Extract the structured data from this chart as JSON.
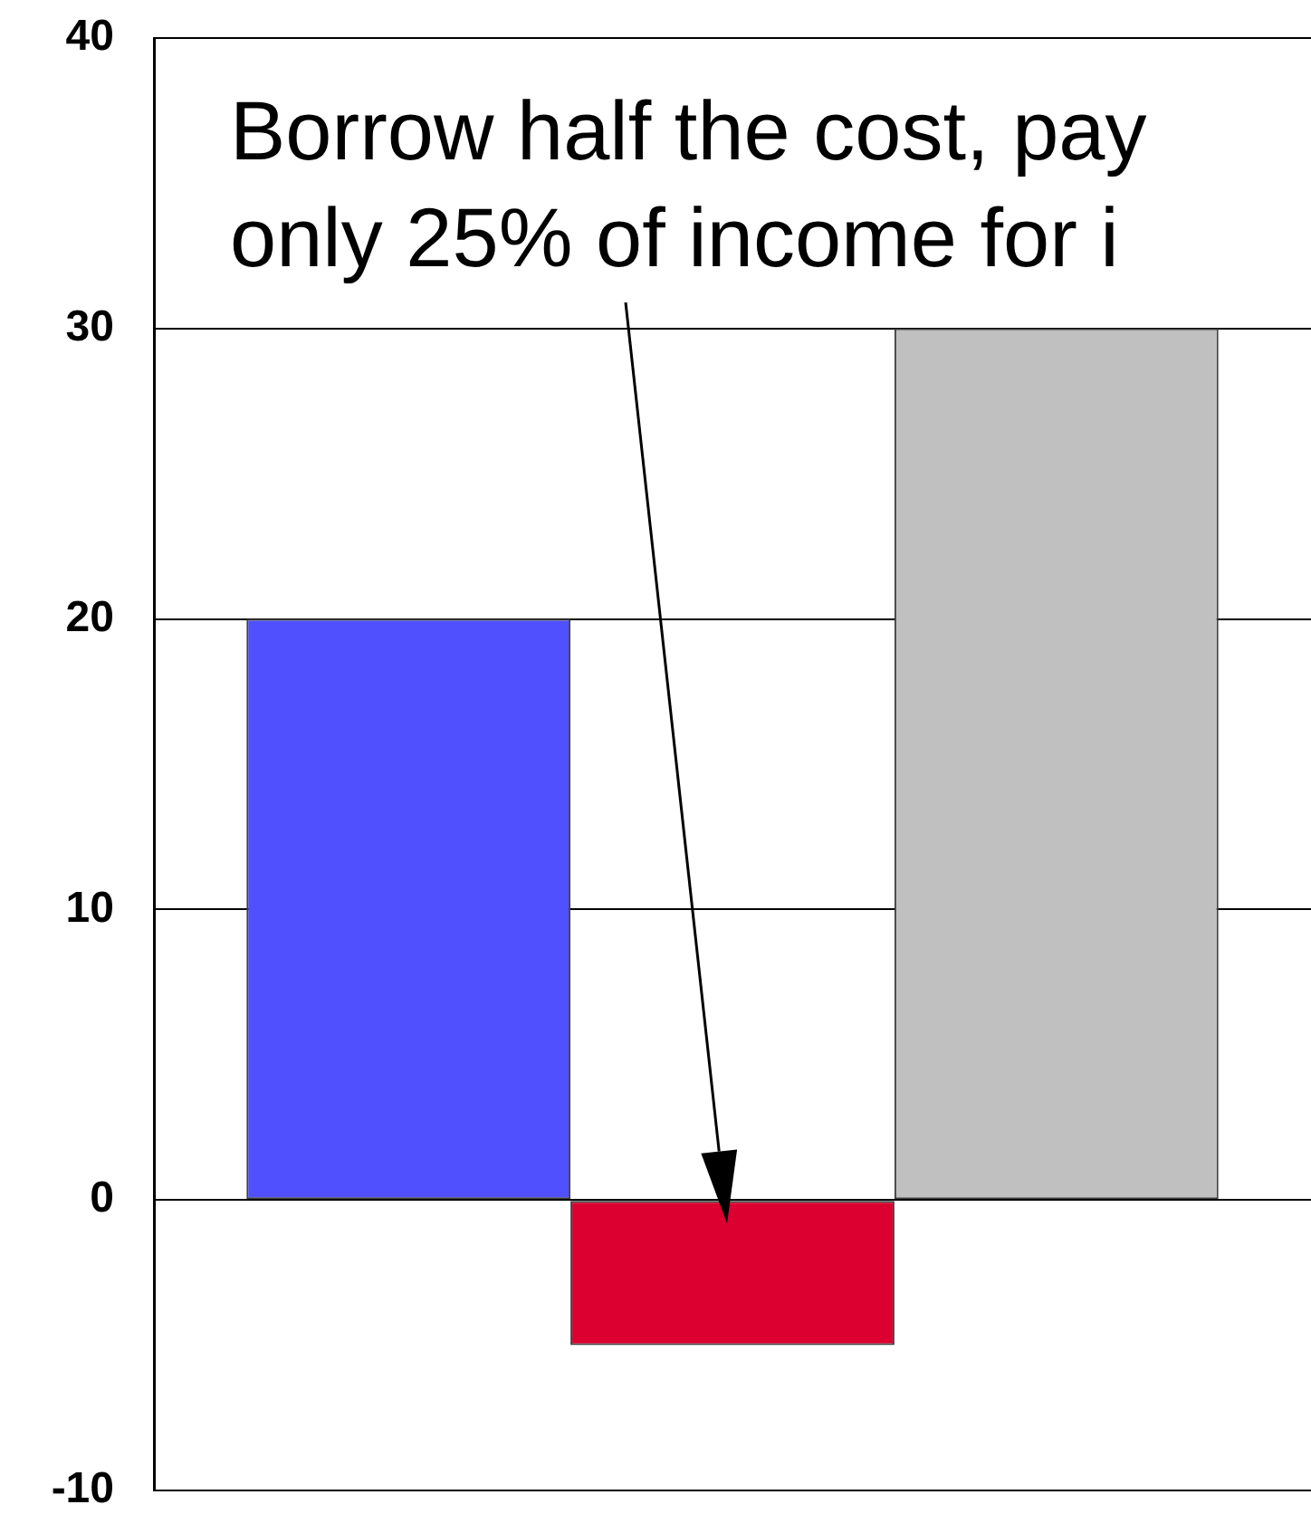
{
  "chart_data": {
    "type": "bar",
    "categories": [
      null
    ],
    "series": [
      {
        "color": "#5050ff",
        "values": [
          20
        ]
      },
      {
        "color": "#dc0030",
        "values": [
          -5
        ]
      },
      {
        "color": "#c0c0c0",
        "values": [
          30
        ]
      }
    ],
    "ylim": [
      -10,
      40
    ],
    "yticks": [
      -10,
      0,
      10,
      20,
      30,
      40
    ],
    "grid": "y",
    "tick_labels": "y",
    "annotations": [
      "Borrow half the cost, pay only 25% of income for i"
    ]
  }
}
